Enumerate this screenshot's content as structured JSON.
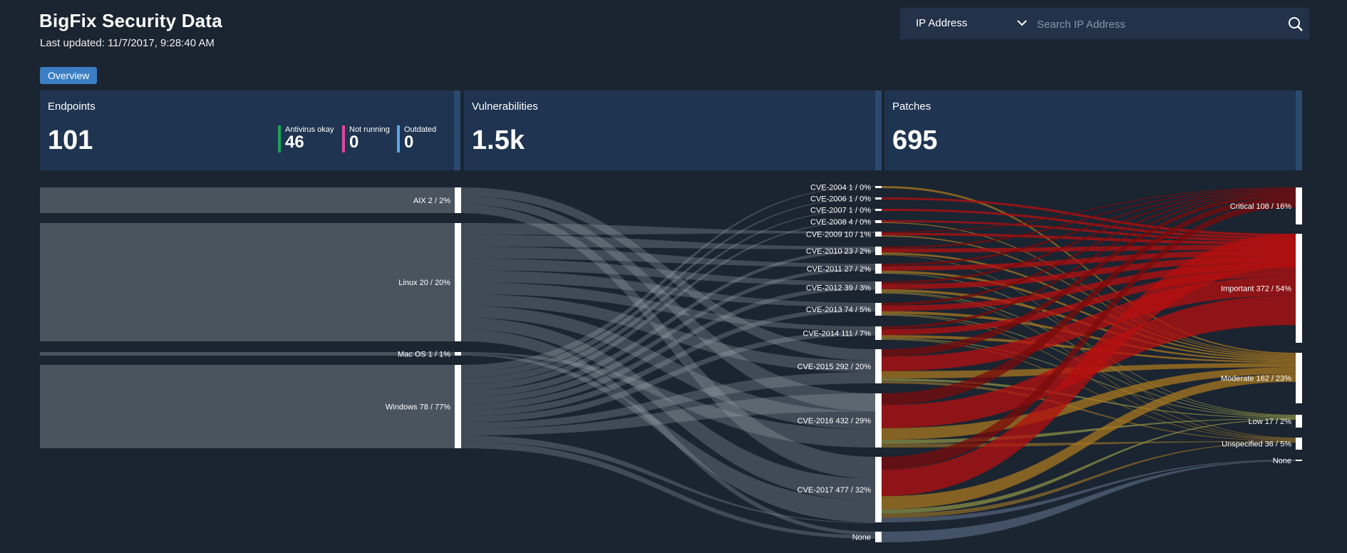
{
  "header": {
    "title": "BigFix Security Data",
    "updated": "Last updated: 11/7/2017, 9:28:40 AM",
    "tab": "Overview"
  },
  "search": {
    "select_value": "IP Address",
    "placeholder": "Search IP Address"
  },
  "cards": {
    "endpoints": {
      "title": "Endpoints",
      "value": "101",
      "legend": [
        {
          "label": "Antivirus okay",
          "value": "46",
          "color": "#19a35a"
        },
        {
          "label": "Not running",
          "value": "0",
          "color": "#e0479e"
        },
        {
          "label": "Outdated",
          "value": "0",
          "color": "#5aa7e8"
        }
      ]
    },
    "vulnerabilities": {
      "title": "Vulnerabilities",
      "value": "1.5k"
    },
    "patches": {
      "title": "Patches",
      "value": "695"
    }
  },
  "colors": {
    "os_flow": "#a6b0bb",
    "critical": "#7a0b0b",
    "important": "#b50f0f",
    "moderate": "#a8771f",
    "low": "#8b8f45",
    "unspecified": "#8a6a2a",
    "none": "#6b7f9c"
  },
  "sankey": {
    "os": [
      {
        "name": "aix",
        "label": "AIX 2 / 2%",
        "weight": 2
      },
      {
        "name": "linux",
        "label": "Linux 20 / 20%",
        "weight": 20
      },
      {
        "name": "macos",
        "label": "Mac OS 1 / 1%",
        "weight": 1
      },
      {
        "name": "windows",
        "label": "Windows 78 / 77%",
        "weight": 78
      }
    ],
    "cve": [
      {
        "name": "cve-2004",
        "label": "CVE-2004 1 / 0%",
        "weight": 1
      },
      {
        "name": "cve-2006",
        "label": "CVE-2006 1 / 0%",
        "weight": 1
      },
      {
        "name": "cve-2007",
        "label": "CVE-2007 1 / 0%",
        "weight": 1
      },
      {
        "name": "cve-2008",
        "label": "CVE-2008 4 / 0%",
        "weight": 4
      },
      {
        "name": "cve-2009",
        "label": "CVE-2009 10 / 1%",
        "weight": 10
      },
      {
        "name": "cve-2010",
        "label": "CVE-2010 23 / 2%",
        "weight": 23
      },
      {
        "name": "cve-2011",
        "label": "CVE-2011 27 / 2%",
        "weight": 27
      },
      {
        "name": "cve-2012",
        "label": "CVE-2012 39 / 3%",
        "weight": 39
      },
      {
        "name": "cve-2013",
        "label": "CVE-2013 74 / 5%",
        "weight": 74
      },
      {
        "name": "cve-2014",
        "label": "CVE-2014 111 / 7%",
        "weight": 111
      },
      {
        "name": "cve-2015",
        "label": "CVE-2015 292 / 20%",
        "weight": 292
      },
      {
        "name": "cve-2016",
        "label": "CVE-2016 432 / 29%",
        "weight": 432
      },
      {
        "name": "cve-2017",
        "label": "CVE-2017 477 / 32%",
        "weight": 477
      },
      {
        "name": "cve-none",
        "label": "None",
        "weight": 1
      }
    ],
    "severity": [
      {
        "name": "critical",
        "label": "Critical 108 / 16%",
        "weight": 108
      },
      {
        "name": "important",
        "label": "Important 372 / 54%",
        "weight": 372
      },
      {
        "name": "moderate",
        "label": "Moderate 162 / 23%",
        "weight": 162
      },
      {
        "name": "low",
        "label": "Low 17 / 2%",
        "weight": 17
      },
      {
        "name": "unspecified",
        "label": "Unspecified 36 / 5%",
        "weight": 36
      },
      {
        "name": "sev-none",
        "label": "None",
        "weight": 1
      }
    ]
  }
}
